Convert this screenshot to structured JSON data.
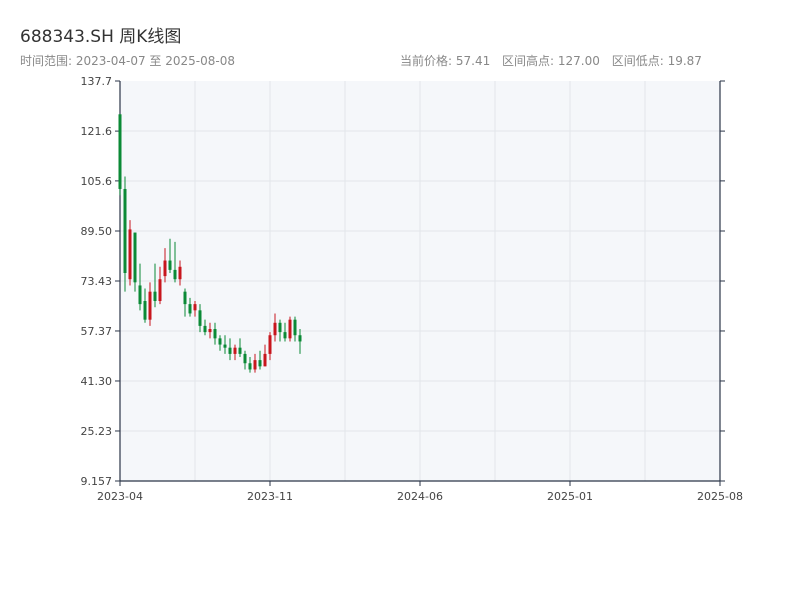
{
  "header": {
    "title": "688343.SH 周K线图",
    "subtitle": "时间范围: 2023-04-07 至 2025-08-08",
    "current_price": "当前价格: 57.41",
    "high": "区间高点: 127.00",
    "low": "区间低点: 19.87"
  },
  "colors": {
    "up": "#c8161d",
    "down": "#0b8a36",
    "plot_bg": "#f5f7fa",
    "grid": "#e2e5ea",
    "axis": "#2b3548"
  },
  "chart_data": {
    "type": "candlestick",
    "title": "688343.SH 周K线图",
    "xlabel": "",
    "ylabel": "",
    "ylim": [
      9.157,
      137.7
    ],
    "grid": true,
    "yticks": [
      9.157,
      25.23,
      41.3,
      57.37,
      73.43,
      89.5,
      105.6,
      121.6,
      137.7
    ],
    "ytick_labels": [
      "9.157",
      "25.23",
      "41.30",
      "57.37",
      "73.43",
      "89.50",
      "105.6",
      "121.6",
      "137.7"
    ],
    "xticks": [
      {
        "label": "2023-04",
        "index": 0
      },
      {
        "label": "2023-11",
        "index": 30
      },
      {
        "label": "2024-06",
        "index": 60
      },
      {
        "label": "2025-01",
        "index": 90
      },
      {
        "label": "2025-08",
        "index": 120
      }
    ],
    "candles": [
      [
        127.0,
        103.0,
        127.0,
        101.0
      ],
      [
        103.0,
        76.0,
        107.0,
        70.0
      ],
      [
        74.0,
        90.0,
        93.0,
        72.0
      ],
      [
        89.0,
        73.0,
        89.0,
        70.0
      ],
      [
        72.0,
        66.0,
        79.0,
        64.0
      ],
      [
        67.0,
        61.0,
        71.0,
        60.0
      ],
      [
        61.0,
        70.0,
        73.0,
        59.0
      ],
      [
        70.0,
        67.0,
        79.0,
        65.0
      ],
      [
        67.0,
        74.0,
        78.0,
        66.0
      ],
      [
        75.0,
        80.0,
        84.0,
        73.0
      ],
      [
        80.0,
        77.0,
        87.0,
        76.0
      ],
      [
        77.0,
        74.0,
        86.0,
        73.0
      ],
      [
        74.0,
        78.0,
        80.0,
        72.0
      ],
      [
        70.0,
        66.0,
        71.0,
        62.0
      ],
      [
        66.0,
        63.0,
        68.0,
        62.0
      ],
      [
        64.0,
        66.0,
        67.0,
        62.0
      ],
      [
        64.0,
        59.0,
        66.0,
        57.0
      ],
      [
        59.0,
        57.0,
        61.0,
        56.0
      ],
      [
        57.0,
        58.0,
        60.0,
        55.0
      ],
      [
        58.0,
        55.0,
        60.0,
        53.0
      ],
      [
        55.0,
        53.0,
        56.0,
        51.0
      ],
      [
        53.0,
        52.0,
        56.0,
        50.0
      ],
      [
        52.0,
        50.0,
        55.0,
        48.0
      ],
      [
        50.0,
        52.0,
        53.0,
        48.0
      ],
      [
        52.0,
        50.0,
        55.0,
        49.0
      ],
      [
        50.0,
        47.0,
        51.0,
        45.0
      ],
      [
        47.0,
        45.0,
        49.0,
        44.0
      ],
      [
        45.0,
        48.0,
        50.0,
        44.0
      ],
      [
        48.0,
        46.0,
        51.0,
        45.0
      ],
      [
        46.0,
        50.0,
        53.0,
        46.0
      ],
      [
        50.0,
        56.0,
        57.0,
        48.0
      ],
      [
        56.0,
        60.0,
        63.0,
        54.0
      ],
      [
        60.0,
        57.0,
        61.0,
        54.0
      ],
      [
        57.0,
        55.0,
        60.0,
        54.0
      ],
      [
        55.0,
        61.0,
        62.0,
        54.0
      ],
      [
        61.0,
        56.0,
        62.0,
        54.0
      ],
      [
        56.0,
        54.0,
        58.0,
        50.0
      ]
    ]
  }
}
